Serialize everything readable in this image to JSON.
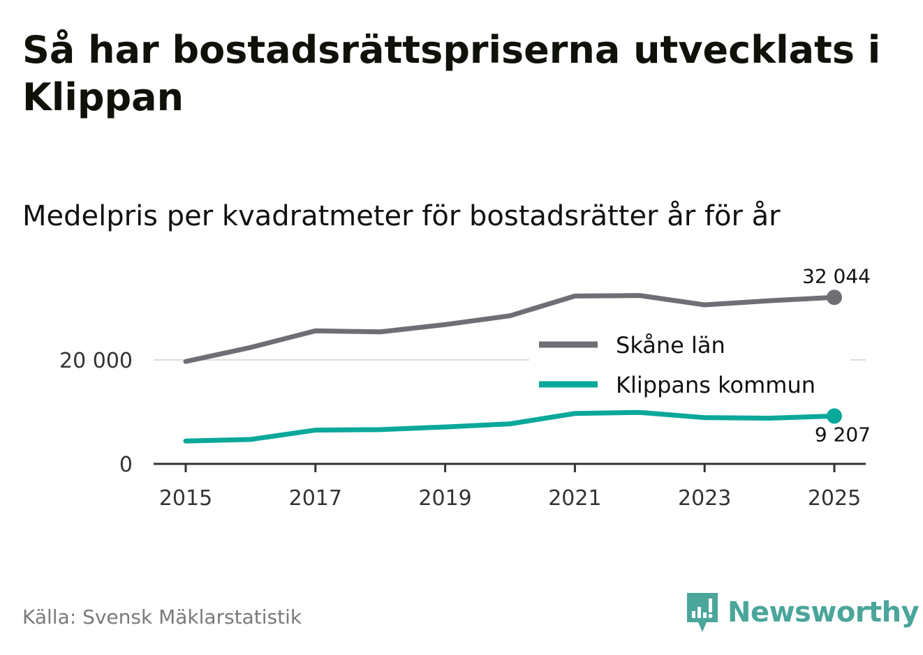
{
  "title": "Så har bostadsrättspriserna utvecklats i Klippan",
  "subtitle": "Medelpris per kvadratmeter för bostadsrätter år för år",
  "source": "Källa: Svensk Mäklarstatistik",
  "brand": {
    "name": "Newsworthy",
    "color": "#4aa59a"
  },
  "chart_data": {
    "type": "line",
    "title": "Medelpris per kvadratmeter för bostadsrätter år för år",
    "xlabel": "",
    "ylabel": "",
    "x": [
      2015,
      2016,
      2017,
      2018,
      2019,
      2020,
      2021,
      2022,
      2023,
      2024,
      2025
    ],
    "xticks": [
      2015,
      2017,
      2019,
      2021,
      2023,
      2025
    ],
    "xtick_labels": [
      "2015",
      "2017",
      "2019",
      "2021",
      "2023",
      "2025"
    ],
    "yticks": [
      0,
      20000
    ],
    "ytick_labels": [
      "0",
      "20 000"
    ],
    "ylim": [
      0,
      34000
    ],
    "xlim": [
      2014.75,
      2025.25
    ],
    "grid": true,
    "legend_position": "right",
    "series": [
      {
        "name": "Skåne län",
        "color": "#6f6e75",
        "values": [
          19700,
          22400,
          25600,
          25400,
          26800,
          28500,
          32300,
          32400,
          30600,
          31400,
          32044
        ],
        "end_label": "32 044"
      },
      {
        "name": "Klippans kommun",
        "color": "#0aa89b",
        "values": [
          4400,
          4700,
          6500,
          6600,
          7100,
          7700,
          9700,
          9900,
          8900,
          8800,
          9207
        ],
        "end_label": "9 207"
      }
    ]
  }
}
